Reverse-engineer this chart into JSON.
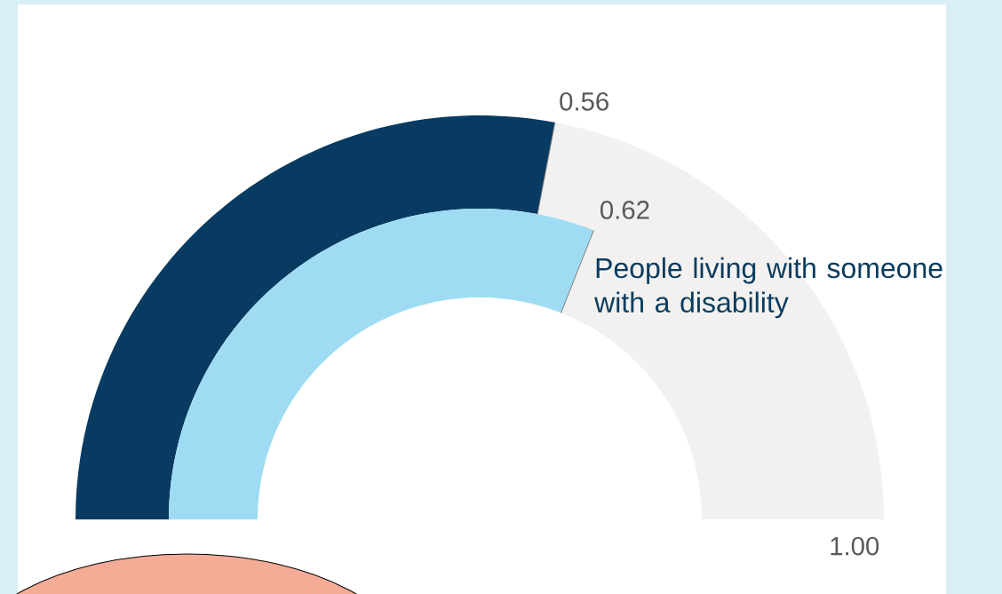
{
  "chart_data": {
    "type": "donut",
    "series": [
      {
        "values": [
          0.56,
          0.44
        ],
        "colors": [
          "#083b62",
          "#f2f1f0"
        ],
        "value_labels": [
          "0.56",
          null
        ]
      },
      {
        "name": "People living with someone with a disability",
        "values": [
          0.62,
          0.38
        ],
        "colors": [
          "#9fdcf3",
          "#f2f1f0"
        ],
        "value_labels": [
          "0.62",
          null
        ]
      }
    ],
    "annotations": [
      "1.00"
    ]
  }
}
